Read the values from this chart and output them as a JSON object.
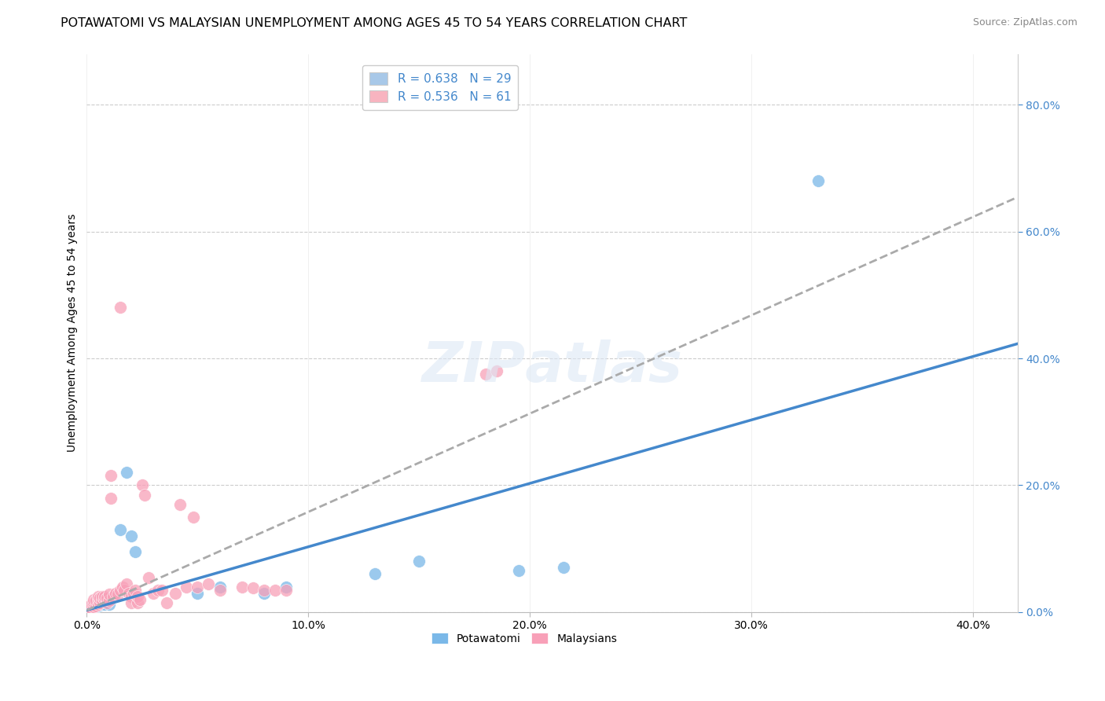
{
  "title": "POTAWATOMI VS MALAYSIAN UNEMPLOYMENT AMONG AGES 45 TO 54 YEARS CORRELATION CHART",
  "source": "Source: ZipAtlas.com",
  "ylabel": "Unemployment Among Ages 45 to 54 years",
  "xlim": [
    0.0,
    0.42
  ],
  "ylim": [
    0.0,
    0.88
  ],
  "xticks": [
    0.0,
    0.1,
    0.2,
    0.3,
    0.4
  ],
  "yticks_right": [
    0.0,
    0.2,
    0.4,
    0.6,
    0.8
  ],
  "legend_entries": [
    {
      "label": "R = 0.638   N = 29",
      "color": "#a8c8e8"
    },
    {
      "label": "R = 0.536   N = 61",
      "color": "#f8b4c0"
    }
  ],
  "bottom_legend": [
    "Potawatomi",
    "Malaysians"
  ],
  "blue_scatter_color": "#7ab8e8",
  "pink_scatter_color": "#f8a0b8",
  "blue_line_color": "#4488cc",
  "pink_line_color": "#aaaaaa",
  "right_tick_color": "#4488cc",
  "watermark_text": "ZIPAtlas",
  "blue_slope": 1.0,
  "blue_intercept": 0.003,
  "pink_slope": 1.55,
  "pink_intercept": 0.003,
  "potawatomi_points": [
    [
      0.001,
      0.004
    ],
    [
      0.002,
      0.006
    ],
    [
      0.002,
      0.01
    ],
    [
      0.003,
      0.008
    ],
    [
      0.003,
      0.012
    ],
    [
      0.004,
      0.009
    ],
    [
      0.004,
      0.014
    ],
    [
      0.005,
      0.01
    ],
    [
      0.005,
      0.016
    ],
    [
      0.006,
      0.012
    ],
    [
      0.006,
      0.018
    ],
    [
      0.007,
      0.014
    ],
    [
      0.008,
      0.012
    ],
    [
      0.009,
      0.02
    ],
    [
      0.01,
      0.012
    ],
    [
      0.012,
      0.025
    ],
    [
      0.015,
      0.13
    ],
    [
      0.018,
      0.22
    ],
    [
      0.02,
      0.12
    ],
    [
      0.022,
      0.095
    ],
    [
      0.05,
      0.03
    ],
    [
      0.06,
      0.04
    ],
    [
      0.08,
      0.03
    ],
    [
      0.09,
      0.04
    ],
    [
      0.13,
      0.06
    ],
    [
      0.15,
      0.08
    ],
    [
      0.195,
      0.065
    ],
    [
      0.215,
      0.07
    ],
    [
      0.33,
      0.68
    ]
  ],
  "malaysian_points": [
    [
      0.001,
      0.004
    ],
    [
      0.001,
      0.008
    ],
    [
      0.002,
      0.006
    ],
    [
      0.002,
      0.012
    ],
    [
      0.003,
      0.008
    ],
    [
      0.003,
      0.015
    ],
    [
      0.003,
      0.02
    ],
    [
      0.004,
      0.01
    ],
    [
      0.004,
      0.018
    ],
    [
      0.005,
      0.012
    ],
    [
      0.005,
      0.02
    ],
    [
      0.005,
      0.025
    ],
    [
      0.006,
      0.015
    ],
    [
      0.006,
      0.022
    ],
    [
      0.007,
      0.018
    ],
    [
      0.007,
      0.025
    ],
    [
      0.008,
      0.02
    ],
    [
      0.008,
      0.025
    ],
    [
      0.009,
      0.015
    ],
    [
      0.009,
      0.022
    ],
    [
      0.01,
      0.018
    ],
    [
      0.01,
      0.028
    ],
    [
      0.011,
      0.215
    ],
    [
      0.011,
      0.18
    ],
    [
      0.012,
      0.025
    ],
    [
      0.013,
      0.03
    ],
    [
      0.014,
      0.028
    ],
    [
      0.015,
      0.48
    ],
    [
      0.015,
      0.035
    ],
    [
      0.016,
      0.04
    ],
    [
      0.017,
      0.035
    ],
    [
      0.018,
      0.045
    ],
    [
      0.019,
      0.03
    ],
    [
      0.02,
      0.025
    ],
    [
      0.02,
      0.015
    ],
    [
      0.021,
      0.03
    ],
    [
      0.022,
      0.035
    ],
    [
      0.023,
      0.015
    ],
    [
      0.023,
      0.025
    ],
    [
      0.024,
      0.02
    ],
    [
      0.025,
      0.2
    ],
    [
      0.026,
      0.185
    ],
    [
      0.028,
      0.055
    ],
    [
      0.03,
      0.03
    ],
    [
      0.032,
      0.035
    ],
    [
      0.034,
      0.035
    ],
    [
      0.036,
      0.015
    ],
    [
      0.04,
      0.03
    ],
    [
      0.042,
      0.17
    ],
    [
      0.045,
      0.04
    ],
    [
      0.048,
      0.15
    ],
    [
      0.05,
      0.04
    ],
    [
      0.055,
      0.045
    ],
    [
      0.06,
      0.035
    ],
    [
      0.07,
      0.04
    ],
    [
      0.075,
      0.038
    ],
    [
      0.08,
      0.035
    ],
    [
      0.085,
      0.035
    ],
    [
      0.09,
      0.035
    ],
    [
      0.18,
      0.375
    ],
    [
      0.185,
      0.38
    ]
  ],
  "grid_color": "#cccccc",
  "background_color": "#ffffff",
  "title_fontsize": 11.5,
  "axis_label_fontsize": 10,
  "tick_fontsize": 10,
  "legend_fontsize": 11
}
